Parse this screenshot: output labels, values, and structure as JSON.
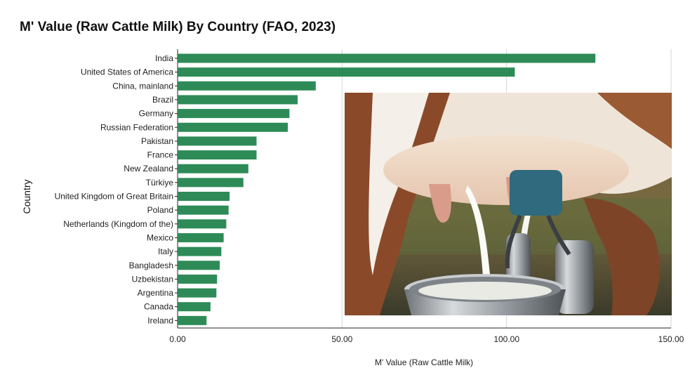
{
  "chart_data": {
    "type": "bar",
    "orientation": "horizontal",
    "title": "M' Value (Raw Cattle Milk) By Country (FAO, 2023)",
    "xlabel": "M' Value (Raw Cattle Milk)",
    "ylabel": "Country",
    "xlim": [
      0,
      150
    ],
    "xticks": [
      "0.00",
      "50.00",
      "100.00",
      "150.00"
    ],
    "grid": "vertical",
    "bar_color": "#2e8b57",
    "categories": [
      "India",
      "United States of America",
      "China, mainland",
      "Brazil",
      "Germany",
      "Russian Federation",
      "Pakistan",
      "France",
      "New Zealand",
      "Türkiye",
      "United Kingdom of Great Britain",
      "Poland",
      "Netherlands (Kingdom of the)",
      "Mexico",
      "Italy",
      "Bangladesh",
      "Uzbekistan",
      "Argentina",
      "Canada",
      "Ireland"
    ],
    "values": [
      127.0,
      102.5,
      42.0,
      36.5,
      34.0,
      33.5,
      24.0,
      24.0,
      21.5,
      20.0,
      15.8,
      15.5,
      14.8,
      14.0,
      13.3,
      12.8,
      12.0,
      11.8,
      10.0,
      8.8
    ]
  },
  "image": {
    "subject": "cow-milking-photo"
  }
}
